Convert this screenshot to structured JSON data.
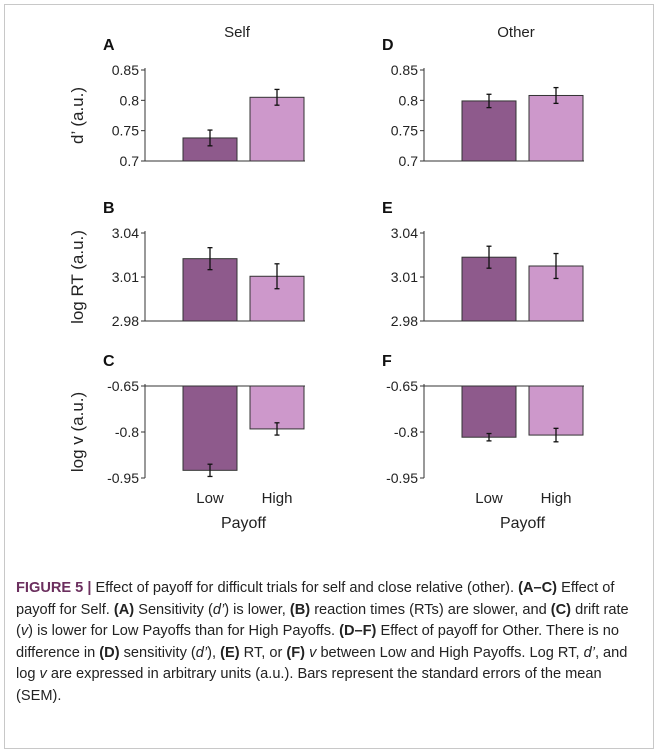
{
  "chart_data": {
    "type": "bar",
    "column_titles": [
      "Self",
      "Other"
    ],
    "categories": [
      "Low",
      "High"
    ],
    "xlabel": "Payoff",
    "colors": {
      "Low": "#8e5a8c",
      "High": "#cd98cb"
    },
    "rows": [
      {
        "ylabel": "d’ (a.u.)",
        "ylim": [
          0.7,
          0.85
        ],
        "ticks": [
          "0.85",
          "0.8",
          "0.75",
          "0.7"
        ],
        "tick_values": [
          0.85,
          0.8,
          0.75,
          0.7
        ],
        "baseline": 0.7
      },
      {
        "ylabel": "log RT (a.u.)",
        "ylim": [
          2.98,
          3.04
        ],
        "ticks": [
          "3.04",
          "3.01",
          "2.98"
        ],
        "tick_values": [
          3.04,
          3.01,
          2.98
        ],
        "baseline": 2.98
      },
      {
        "ylabel": "log v (a.u.)",
        "ylim": [
          -0.95,
          -0.65
        ],
        "ticks": [
          "-0.65",
          "-0.8",
          "-0.95"
        ],
        "tick_values": [
          -0.65,
          -0.8,
          -0.95
        ],
        "baseline": -0.65
      }
    ],
    "panels": [
      {
        "letter": "A",
        "row": 0,
        "col": 0,
        "values": [
          0.738,
          0.805
        ],
        "errors": [
          0.013,
          0.013
        ]
      },
      {
        "letter": "D",
        "row": 0,
        "col": 1,
        "values": [
          0.799,
          0.808
        ],
        "errors": [
          0.011,
          0.013
        ]
      },
      {
        "letter": "B",
        "row": 1,
        "col": 0,
        "values": [
          3.0225,
          3.0105
        ],
        "errors": [
          0.0075,
          0.0085
        ]
      },
      {
        "letter": "E",
        "row": 1,
        "col": 1,
        "values": [
          3.0235,
          3.0175
        ],
        "errors": [
          0.0075,
          0.0085
        ]
      },
      {
        "letter": "C",
        "row": 2,
        "col": 0,
        "values": [
          -0.925,
          -0.79
        ],
        "errors": [
          0.02,
          0.02
        ]
      },
      {
        "letter": "F",
        "row": 2,
        "col": 1,
        "values": [
          -0.817,
          -0.81
        ],
        "errors": [
          0.012,
          0.022
        ]
      }
    ]
  },
  "caption": {
    "label": "FIGURE 5 |",
    "text": " Effect of payoff for difficult trials for self and close relative (other). ",
    "p1b": "(A–C)",
    "p1": " Effect of payoff for Self. ",
    "p2b": "(A)",
    "p2": " Sensitivity (",
    "dprime1": "d’",
    "p3": ") is lower, ",
    "p4b": "(B)",
    "p4": " reaction times (RTs) are slower, and ",
    "p5b": "(C)",
    "p5": " drift rate (",
    "v1": "v",
    "p6": ") is lower for Low Payoffs than for High Payoffs. ",
    "p7b": "(D–F)",
    "p7": " Effect of payoff for Other. There is no difference in ",
    "p8b": "(D)",
    "p8": " sensitivity (",
    "dprime2": "d’",
    "p9": "), ",
    "p10b": "(E)",
    "p10": " RT, or ",
    "p11b": "(F)",
    "p11": " ",
    "v2": "v",
    "p12": " between Low and High Payoffs. Log RT, ",
    "dprime3": "d’",
    "p13": ", and log ",
    "v3": "v",
    "p14": " are expressed in arbitrary units (a.u.). Bars represent the standard errors of the mean (SEM)."
  }
}
